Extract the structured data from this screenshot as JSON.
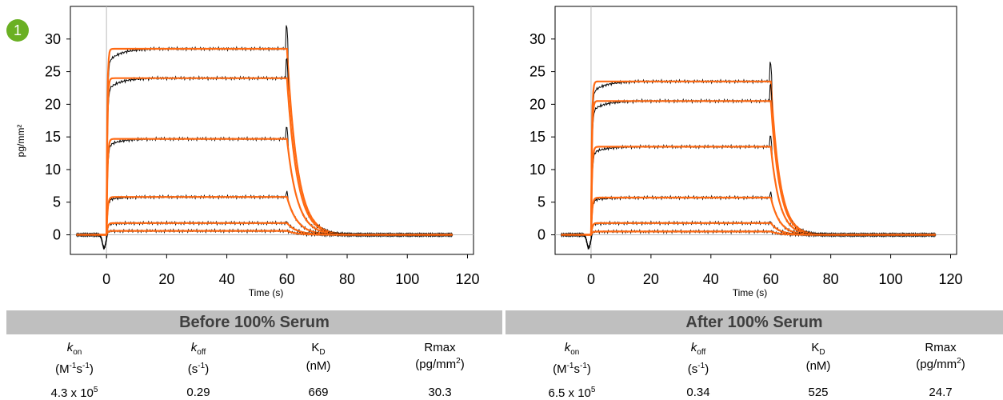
{
  "badge": "1",
  "badge_color": "#6ab023",
  "fit_color": "#ff6a13",
  "data_color": "#000000",
  "chart_data": [
    {
      "type": "line",
      "title": "",
      "xlabel": "Time (s)",
      "ylabel": "pg/mm²",
      "xlim": [
        -12,
        122
      ],
      "ylim": [
        -3,
        35
      ],
      "xticks": [
        0,
        20,
        40,
        60,
        80,
        100,
        120
      ],
      "yticks": [
        0,
        5,
        10,
        15,
        20,
        25,
        30
      ],
      "injection_start": 0,
      "injection_end": 60,
      "decay_rate": 0.29,
      "series": [
        {
          "plateau": 28.5
        },
        {
          "plateau": 24.0
        },
        {
          "plateau": 14.7
        },
        {
          "plateau": 5.8
        },
        {
          "plateau": 1.8
        },
        {
          "plateau": 0.6
        }
      ]
    },
    {
      "type": "line",
      "title": "",
      "xlabel": "Time (s)",
      "ylabel": "",
      "xlim": [
        -12,
        122
      ],
      "ylim": [
        -3,
        35
      ],
      "xticks": [
        0,
        20,
        40,
        60,
        80,
        100,
        120
      ],
      "yticks": [
        0,
        5,
        10,
        15,
        20,
        25,
        30
      ],
      "injection_start": 0,
      "injection_end": 60,
      "decay_rate": 0.34,
      "series": [
        {
          "plateau": 23.5
        },
        {
          "plateau": 20.5
        },
        {
          "plateau": 13.5
        },
        {
          "plateau": 5.7
        },
        {
          "plateau": 1.8
        },
        {
          "plateau": 0.5
        }
      ]
    }
  ],
  "table": {
    "before": {
      "title": "Before 100% Serum",
      "kon": "4.3 x 10",
      "kon_exp": "5",
      "koff": "0.29",
      "kd": "669",
      "rmax": "30.3"
    },
    "after": {
      "title": "After 100% Serum",
      "kon": "6.5 x 10",
      "kon_exp": "5",
      "koff": "0.34",
      "kd": "525",
      "rmax": "24.7"
    },
    "labels": {
      "k": "k",
      "on": "on",
      "off": "off",
      "K": "K",
      "D": "D",
      "rmax": "Rmax",
      "kon_unit_a": "(M",
      "kon_unit_b": "-1",
      "kon_unit_c": "s",
      "kon_unit_d": "-1",
      "kon_unit_e": ")",
      "koff_unit_a": "(s",
      "koff_unit_b": "-1",
      "koff_unit_c": ")",
      "kd_unit": "(nM)",
      "rmax_unit_a": "(pg/mm",
      "rmax_unit_b": "2",
      "rmax_unit_c": ")"
    }
  }
}
